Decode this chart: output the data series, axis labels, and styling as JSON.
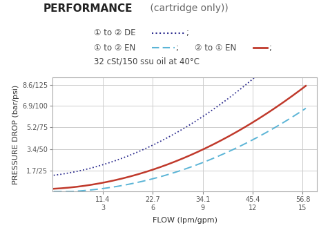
{
  "title_bold": "PERFORMANCE",
  "title_normal": " (cartridge only))",
  "legend_line3": "32 cSt/150 ssu oil at 40°C",
  "xlabel": "FLOW (lpm/gpm)",
  "ylabel": "PRESSURE DROP (bar/psi)",
  "x_tick_lpm": [
    "11.4",
    "22.7",
    "34.1",
    "45.4",
    "56.8"
  ],
  "x_tick_gpm": [
    "3",
    "6",
    "9",
    "12",
    "15"
  ],
  "x_tick_vals": [
    11.4,
    22.7,
    34.1,
    45.4,
    56.8
  ],
  "y_tick_labels": [
    "1.7/25",
    "3.4/50",
    "5.2/75",
    "6.9/100",
    "8.6/125"
  ],
  "y_tick_vals": [
    1.7,
    3.4,
    5.2,
    6.9,
    8.6
  ],
  "x_min": 0,
  "x_max": 60,
  "y_min": 0,
  "y_max": 9.2,
  "color_de": "#2d2d8f",
  "color_en_1to2": "#5ab4d6",
  "color_en_2to1": "#c0392b",
  "bg_color": "#ffffff",
  "grid_color": "#cccccc"
}
